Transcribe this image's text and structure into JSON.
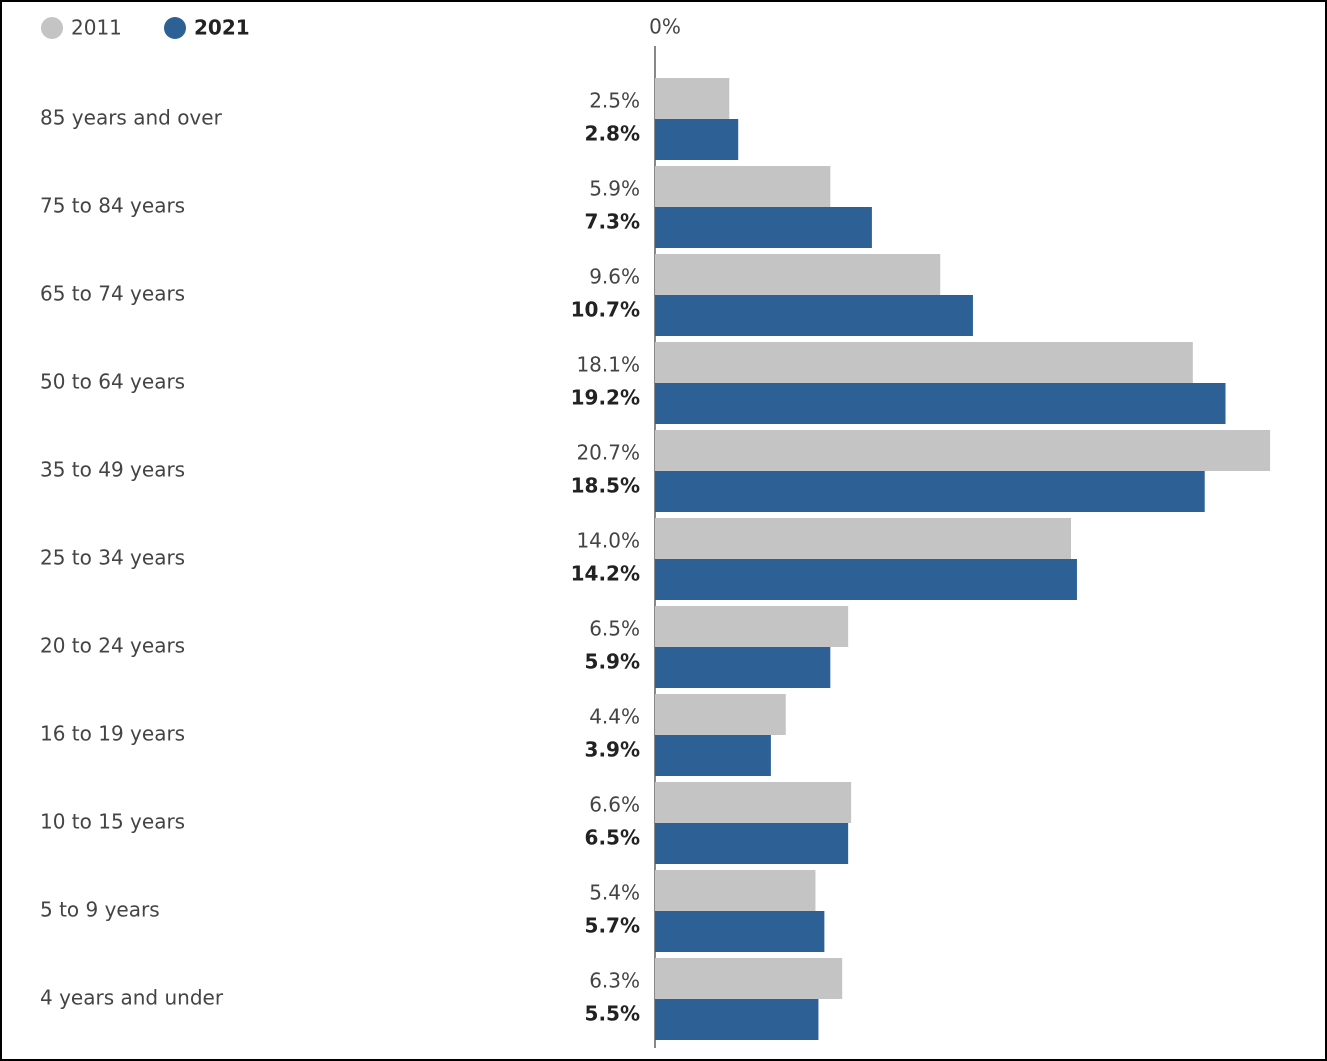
{
  "chart_data": {
    "type": "bar",
    "orientation": "horizontal",
    "categories": [
      "85 years and over",
      "75 to 84 years",
      "65 to 74 years",
      "50 to 64 years",
      "35 to 49 years",
      "25 to 34 years",
      "20 to 24 years",
      "16 to 19 years",
      "10 to 15 years",
      "5 to 9 years",
      "4 years and under"
    ],
    "series": [
      {
        "name": "2011",
        "color": "#c4c4c4",
        "values": [
          2.5,
          5.9,
          9.6,
          18.1,
          20.7,
          14.0,
          6.5,
          4.4,
          6.6,
          5.4,
          6.3
        ],
        "value_labels": [
          "2.5%",
          "5.9%",
          "9.6%",
          "18.1%",
          "20.7%",
          "14.0%",
          "6.5%",
          "4.4%",
          "6.6%",
          "5.4%",
          "6.3%"
        ]
      },
      {
        "name": "2021",
        "color": "#2d6095",
        "values": [
          2.8,
          7.3,
          10.7,
          19.2,
          18.5,
          14.2,
          5.9,
          3.9,
          6.5,
          5.7,
          5.5
        ],
        "value_labels": [
          "2.8%",
          "7.3%",
          "10.7%",
          "19.2%",
          "18.5%",
          "14.2%",
          "5.9%",
          "3.9%",
          "6.5%",
          "5.7%",
          "5.5%"
        ]
      }
    ],
    "xlim": [
      0,
      21
    ],
    "xticks": [
      {
        "value": 0,
        "label": "0%"
      }
    ],
    "legend": "top-left"
  }
}
